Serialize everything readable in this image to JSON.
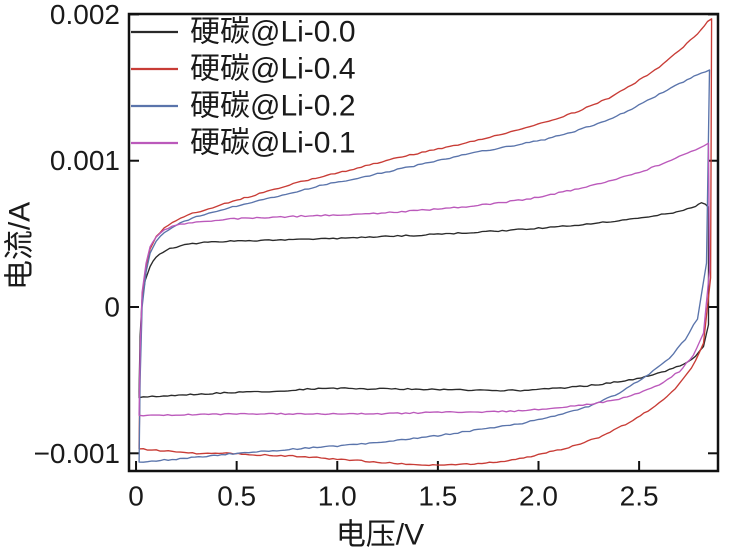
{
  "figure": {
    "background": "#ffffff",
    "frame_color": "#111111",
    "text_color": "#1a1a1a"
  },
  "chart_data": {
    "type": "line",
    "title": "",
    "xlabel": "电压/V",
    "ylabel": "电流/A",
    "xlim": [
      -0.035,
      2.892
    ],
    "ylim": [
      -0.001121,
      0.002003
    ],
    "grid": false,
    "legend_position": "top-left",
    "xticks": {
      "values": [
        0,
        0.5,
        1.0,
        1.5,
        2.0,
        2.5
      ],
      "labels": [
        "0",
        "0.5",
        "1.0",
        "1.5",
        "2.0",
        "2.5"
      ]
    },
    "yticks": {
      "values": [
        -0.001,
        0,
        0.001,
        0.002
      ],
      "labels": [
        "−0.001",
        "0",
        "0.001",
        "0.002"
      ]
    },
    "series": [
      {
        "id": "li-0-0",
        "name": "硬碳@Li-0.0",
        "color": "#2a2a2a",
        "upper": [
          [
            0.015,
            -0.00058
          ],
          [
            0.02,
            -0.0002
          ],
          [
            0.03,
            5e-05
          ],
          [
            0.045,
            0.00018
          ],
          [
            0.07,
            0.00028
          ],
          [
            0.1,
            0.00034
          ],
          [
            0.15,
            0.00039
          ],
          [
            0.22,
            0.00042
          ],
          [
            0.32,
            0.00044
          ],
          [
            0.45,
            0.00045
          ],
          [
            0.6,
            0.000455
          ],
          [
            0.8,
            0.00046
          ],
          [
            1.0,
            0.00047
          ],
          [
            1.2,
            0.00048
          ],
          [
            1.4,
            0.00049
          ],
          [
            1.6,
            0.000505
          ],
          [
            1.8,
            0.00052
          ],
          [
            2.0,
            0.00054
          ],
          [
            2.2,
            0.00056
          ],
          [
            2.4,
            0.00059
          ],
          [
            2.55,
            0.00062
          ],
          [
            2.65,
            0.00064
          ],
          [
            2.72,
            0.00066
          ],
          [
            2.78,
            0.00069
          ],
          [
            2.81,
            0.00071
          ],
          [
            2.83,
            0.0007
          ],
          [
            2.845,
            0.00068
          ]
        ],
        "lower": [
          [
            0.015,
            -0.00062
          ],
          [
            0.1,
            -0.00061
          ],
          [
            0.25,
            -0.0006
          ],
          [
            0.4,
            -0.00059
          ],
          [
            0.55,
            -0.00058
          ],
          [
            0.7,
            -0.000575
          ],
          [
            0.85,
            -0.00056
          ],
          [
            1.0,
            -0.000555
          ],
          [
            1.15,
            -0.00056
          ],
          [
            1.35,
            -0.00056
          ],
          [
            1.55,
            -0.000565
          ],
          [
            1.75,
            -0.00057
          ],
          [
            1.95,
            -0.00057
          ],
          [
            2.15,
            -0.00055
          ],
          [
            2.3,
            -0.00053
          ],
          [
            2.45,
            -0.0005
          ],
          [
            2.55,
            -0.00047
          ],
          [
            2.65,
            -0.00043
          ],
          [
            2.72,
            -0.00039
          ],
          [
            2.78,
            -0.00034
          ],
          [
            2.82,
            -0.00027
          ],
          [
            2.845,
            -0.00012
          ]
        ]
      },
      {
        "id": "li-0-4",
        "name": "硬碳@Li-0.4",
        "color": "#c83c36",
        "upper": [
          [
            0.015,
            -0.00095
          ],
          [
            0.02,
            -0.0004
          ],
          [
            0.03,
            5e-05
          ],
          [
            0.05,
            0.00028
          ],
          [
            0.07,
            0.0004
          ],
          [
            0.1,
            0.00048
          ],
          [
            0.14,
            0.00054
          ],
          [
            0.2,
            0.00059
          ],
          [
            0.28,
            0.00064
          ],
          [
            0.38,
            0.00068
          ],
          [
            0.5,
            0.00073
          ],
          [
            0.65,
            0.00079
          ],
          [
            0.8,
            0.00085
          ],
          [
            0.95,
            0.0009
          ],
          [
            1.1,
            0.00095
          ],
          [
            1.3,
            0.00102
          ],
          [
            1.5,
            0.00108
          ],
          [
            1.7,
            0.00114
          ],
          [
            1.9,
            0.00121
          ],
          [
            2.05,
            0.00127
          ],
          [
            2.2,
            0.00134
          ],
          [
            2.35,
            0.00143
          ],
          [
            2.5,
            0.00155
          ],
          [
            2.62,
            0.00166
          ],
          [
            2.72,
            0.00178
          ],
          [
            2.79,
            0.00187
          ],
          [
            2.84,
            0.00195
          ],
          [
            2.86,
            0.00197
          ]
        ],
        "lower": [
          [
            0.015,
            -0.00097
          ],
          [
            0.1,
            -0.00098
          ],
          [
            0.2,
            -0.00099
          ],
          [
            0.3,
            -0.001
          ],
          [
            0.45,
            -0.001
          ],
          [
            0.6,
            -0.00101
          ],
          [
            0.8,
            -0.00102
          ],
          [
            1.0,
            -0.00104
          ],
          [
            1.2,
            -0.00106
          ],
          [
            1.4,
            -0.00108
          ],
          [
            1.55,
            -0.00108
          ],
          [
            1.7,
            -0.00107
          ],
          [
            1.85,
            -0.00105
          ],
          [
            2.0,
            -0.00101
          ],
          [
            2.15,
            -0.00096
          ],
          [
            2.3,
            -0.00089
          ],
          [
            2.45,
            -0.00079
          ],
          [
            2.58,
            -0.00068
          ],
          [
            2.68,
            -0.00056
          ],
          [
            2.76,
            -0.00042
          ],
          [
            2.82,
            -0.00025
          ],
          [
            2.855,
            0.0002
          ]
        ]
      },
      {
        "id": "li-0-2",
        "name": "硬碳@Li-0.2",
        "color": "#5a74ab",
        "upper": [
          [
            0.015,
            -0.00106
          ],
          [
            0.02,
            -0.0005
          ],
          [
            0.03,
            0.0
          ],
          [
            0.05,
            0.00024
          ],
          [
            0.07,
            0.00037
          ],
          [
            0.1,
            0.00045
          ],
          [
            0.14,
            0.00051
          ],
          [
            0.2,
            0.00056
          ],
          [
            0.28,
            0.00061
          ],
          [
            0.38,
            0.00065
          ],
          [
            0.5,
            0.00069
          ],
          [
            0.65,
            0.00074
          ],
          [
            0.8,
            0.00079
          ],
          [
            0.95,
            0.00084
          ],
          [
            1.1,
            0.00088
          ],
          [
            1.3,
            0.00094
          ],
          [
            1.5,
            0.001
          ],
          [
            1.7,
            0.00106
          ],
          [
            1.9,
            0.00111
          ],
          [
            2.05,
            0.00115
          ],
          [
            2.2,
            0.00121
          ],
          [
            2.35,
            0.00128
          ],
          [
            2.5,
            0.00138
          ],
          [
            2.62,
            0.00147
          ],
          [
            2.72,
            0.00154
          ],
          [
            2.79,
            0.00159
          ],
          [
            2.83,
            0.00161
          ],
          [
            2.85,
            0.00162
          ]
        ],
        "lower": [
          [
            0.015,
            -0.00106
          ],
          [
            0.1,
            -0.00105
          ],
          [
            0.2,
            -0.00104
          ],
          [
            0.35,
            -0.00102
          ],
          [
            0.5,
            -0.001
          ],
          [
            0.7,
            -0.00098
          ],
          [
            0.9,
            -0.00096
          ],
          [
            1.1,
            -0.00094
          ],
          [
            1.3,
            -0.00091
          ],
          [
            1.5,
            -0.00088
          ],
          [
            1.7,
            -0.00084
          ],
          [
            1.9,
            -0.0008
          ],
          [
            2.1,
            -0.00074
          ],
          [
            2.25,
            -0.00068
          ],
          [
            2.4,
            -0.00059
          ],
          [
            2.55,
            -0.00046
          ],
          [
            2.65,
            -0.00035
          ],
          [
            2.73,
            -0.00022
          ],
          [
            2.79,
            -8e-05
          ],
          [
            2.835,
            0.0003
          ]
        ]
      },
      {
        "id": "li-0-1",
        "name": "硬碳@Li-0.1",
        "color": "#bb59bb",
        "upper": [
          [
            0.015,
            -0.00073
          ],
          [
            0.02,
            -0.0003
          ],
          [
            0.03,
            0.0001
          ],
          [
            0.05,
            0.0003
          ],
          [
            0.07,
            0.00041
          ],
          [
            0.1,
            0.00048
          ],
          [
            0.14,
            0.00053
          ],
          [
            0.2,
            0.00056
          ],
          [
            0.3,
            0.00058
          ],
          [
            0.45,
            0.0006
          ],
          [
            0.6,
            0.00061
          ],
          [
            0.8,
            0.00062
          ],
          [
            1.0,
            0.00063
          ],
          [
            1.2,
            0.00064
          ],
          [
            1.4,
            0.00066
          ],
          [
            1.6,
            0.00068
          ],
          [
            1.8,
            0.00071
          ],
          [
            2.0,
            0.00075
          ],
          [
            2.2,
            0.00081
          ],
          [
            2.35,
            0.00086
          ],
          [
            2.5,
            0.00092
          ],
          [
            2.62,
            0.00098
          ],
          [
            2.72,
            0.00104
          ],
          [
            2.8,
            0.00109
          ],
          [
            2.845,
            0.00112
          ]
        ],
        "lower": [
          [
            0.015,
            -0.00074
          ],
          [
            0.3,
            -0.000735
          ],
          [
            0.6,
            -0.00073
          ],
          [
            0.9,
            -0.00073
          ],
          [
            1.2,
            -0.00073
          ],
          [
            1.5,
            -0.00072
          ],
          [
            1.7,
            -0.00072
          ],
          [
            1.9,
            -0.00071
          ],
          [
            2.1,
            -0.00069
          ],
          [
            2.28,
            -0.00066
          ],
          [
            2.4,
            -0.00063
          ],
          [
            2.5,
            -0.00059
          ],
          [
            2.6,
            -0.00053
          ],
          [
            2.7,
            -0.00044
          ],
          [
            2.77,
            -0.00033
          ],
          [
            2.82,
            -0.00018
          ],
          [
            2.85,
            0.00025
          ]
        ]
      }
    ]
  }
}
